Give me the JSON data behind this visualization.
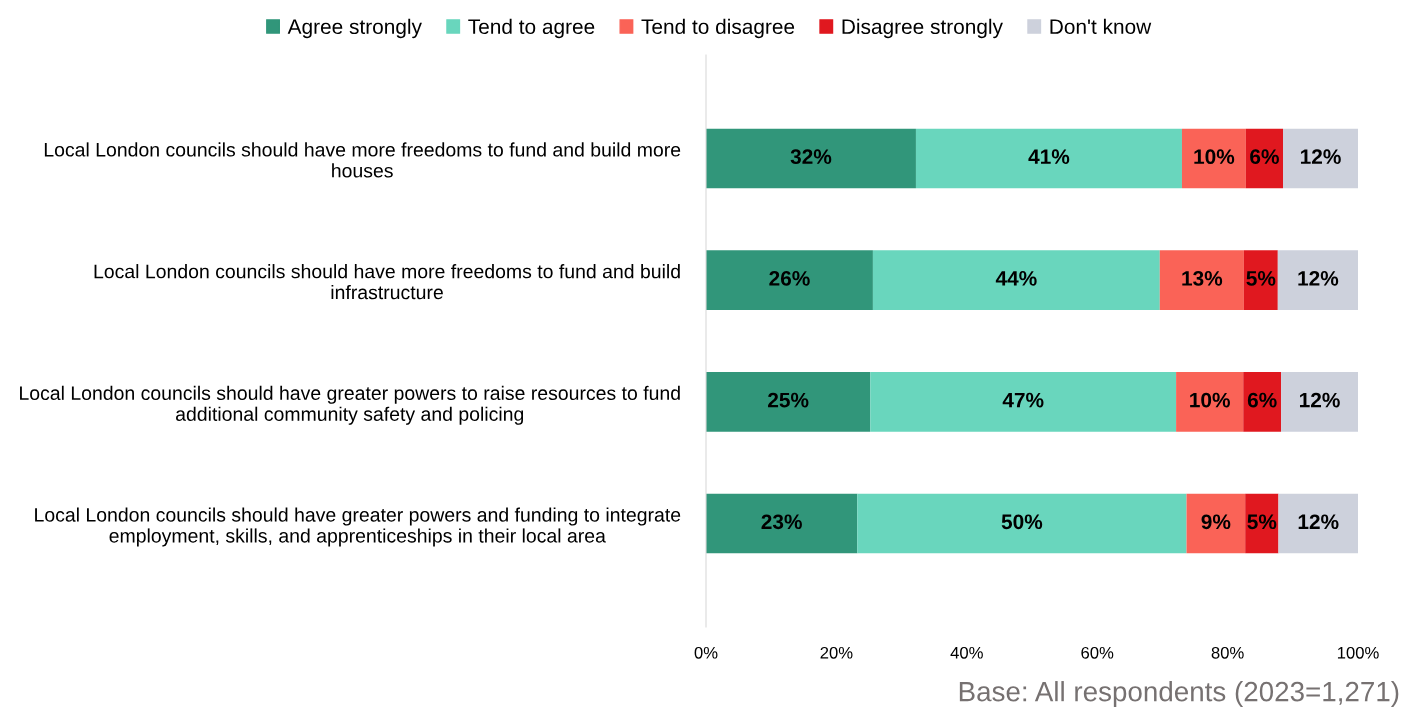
{
  "chart_data": {
    "type": "bar",
    "orientation": "horizontal",
    "stacked": true,
    "categories": [
      "Local London councils should have more freedoms to fund and build more houses",
      "Local London councils should have more freedoms to fund and build infrastructure",
      "Local London councils should have greater powers to raise resources to fund additional community safety and policing",
      "Local London councils should have greater powers and funding to integrate employment, skills, and apprenticeships in their local area"
    ],
    "series": [
      {
        "name": "Agree strongly",
        "color": "#31967a",
        "values": [
          32.2,
          25.6,
          25.2,
          23.2
        ],
        "value_labels": [
          "32%",
          "26%",
          "25%",
          "23%"
        ]
      },
      {
        "name": "Tend to agree",
        "color": "#69d6bd",
        "values": [
          40.8,
          44.0,
          46.9,
          50.5
        ],
        "value_labels": [
          "41%",
          "44%",
          "47%",
          "50%"
        ]
      },
      {
        "name": "Tend to disagree",
        "color": "#fa6357",
        "values": [
          9.8,
          12.9,
          10.3,
          9.0
        ],
        "value_labels": [
          "10%",
          "13%",
          "10%",
          "9%"
        ]
      },
      {
        "name": "Disagree strongly",
        "color": "#e0181f",
        "values": [
          5.7,
          5.2,
          5.8,
          5.1
        ],
        "value_labels": [
          "6%",
          "5%",
          "6%",
          "5%"
        ]
      },
      {
        "name": "Don't know",
        "color": "#cdd1dc",
        "values": [
          11.5,
          12.3,
          11.8,
          12.2
        ],
        "value_labels": [
          "12%",
          "12%",
          "12%",
          "12%"
        ]
      }
    ],
    "xlim": [
      0,
      100
    ],
    "xticks": [
      {
        "value": 0,
        "label": "0%"
      },
      {
        "value": 20,
        "label": "20%"
      },
      {
        "value": 40,
        "label": "40%"
      },
      {
        "value": 60,
        "label": "60%"
      },
      {
        "value": 80,
        "label": "80%"
      },
      {
        "value": 100,
        "label": "100%"
      }
    ],
    "legend": "top",
    "grid": false,
    "annotations": [
      "Base: All respondents (2023=1,271)"
    ]
  }
}
